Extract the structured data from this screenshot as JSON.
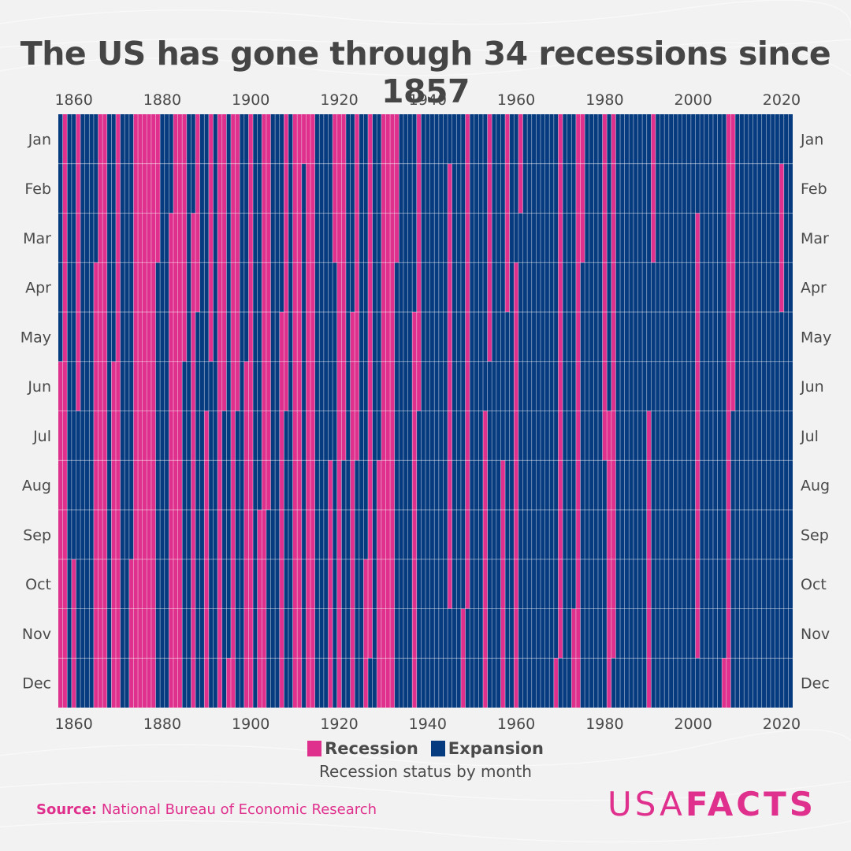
{
  "title": "The US has gone through 34 recessions since 1857",
  "legend": {
    "recession_label": "Recession",
    "expansion_label": "Expansion",
    "caption": "Recession status by month"
  },
  "source": {
    "label": "Source:",
    "text": "National Bureau of Economic Research"
  },
  "logo": {
    "part1": "USA",
    "part2": "FACTS"
  },
  "colors": {
    "recession": "#e0308d",
    "expansion": "#073b80",
    "text": "#4a4a4a",
    "background": "#f2f2f2"
  },
  "chart_data": {
    "type": "heatmap",
    "title": "The US has gone through 34 recessions since 1857",
    "x_axis": {
      "min": 1857,
      "max": 2022,
      "ticks": [
        1860,
        1880,
        1900,
        1920,
        1940,
        1960,
        1980,
        2000,
        2020
      ],
      "position": "top and bottom"
    },
    "y_axis": {
      "categories": [
        "Jan",
        "Feb",
        "Mar",
        "Apr",
        "May",
        "Jun",
        "Jul",
        "Aug",
        "Sep",
        "Oct",
        "Nov",
        "Dec"
      ],
      "position": "left and right"
    },
    "series": [
      {
        "name": "Recession",
        "color": "#e0308d"
      },
      {
        "name": "Expansion",
        "color": "#073b80"
      }
    ],
    "recessions": [
      {
        "start": "1857-06",
        "end": "1858-12"
      },
      {
        "start": "1860-10",
        "end": "1861-06"
      },
      {
        "start": "1865-04",
        "end": "1867-12"
      },
      {
        "start": "1869-06",
        "end": "1870-12"
      },
      {
        "start": "1873-10",
        "end": "1879-03"
      },
      {
        "start": "1882-03",
        "end": "1885-05"
      },
      {
        "start": "1887-03",
        "end": "1888-04"
      },
      {
        "start": "1890-07",
        "end": "1891-05"
      },
      {
        "start": "1893-01",
        "end": "1894-06"
      },
      {
        "start": "1895-12",
        "end": "1897-06"
      },
      {
        "start": "1899-06",
        "end": "1900-12"
      },
      {
        "start": "1902-09",
        "end": "1904-08"
      },
      {
        "start": "1907-05",
        "end": "1908-06"
      },
      {
        "start": "1910-01",
        "end": "1912-01"
      },
      {
        "start": "1913-01",
        "end": "1914-12"
      },
      {
        "start": "1918-08",
        "end": "1919-03"
      },
      {
        "start": "1920-01",
        "end": "1921-07"
      },
      {
        "start": "1923-05",
        "end": "1924-07"
      },
      {
        "start": "1926-10",
        "end": "1927-11"
      },
      {
        "start": "1929-08",
        "end": "1933-03"
      },
      {
        "start": "1937-05",
        "end": "1938-06"
      },
      {
        "start": "1945-02",
        "end": "1945-10"
      },
      {
        "start": "1948-11",
        "end": "1949-10"
      },
      {
        "start": "1953-07",
        "end": "1954-05"
      },
      {
        "start": "1957-08",
        "end": "1958-04"
      },
      {
        "start": "1960-04",
        "end": "1961-02"
      },
      {
        "start": "1969-12",
        "end": "1970-11"
      },
      {
        "start": "1973-11",
        "end": "1975-03"
      },
      {
        "start": "1980-01",
        "end": "1980-07"
      },
      {
        "start": "1981-07",
        "end": "1982-11"
      },
      {
        "start": "1990-07",
        "end": "1991-03"
      },
      {
        "start": "2001-03",
        "end": "2001-11"
      },
      {
        "start": "2007-12",
        "end": "2009-06"
      },
      {
        "start": "2020-02",
        "end": "2020-04"
      }
    ]
  }
}
